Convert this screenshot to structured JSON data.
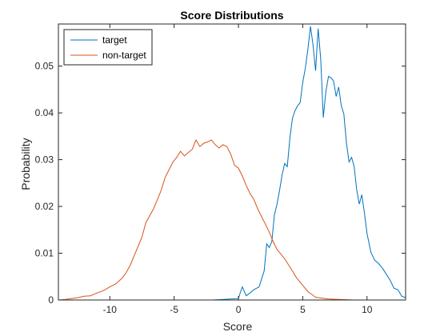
{
  "chart_data": {
    "type": "line",
    "title": "Score Distributions",
    "xlabel": "Score",
    "ylabel": "Probability",
    "xlim": [
      -14,
      13
    ],
    "ylim": [
      0,
      0.059
    ],
    "xticks": [
      -10,
      -5,
      0,
      5,
      10
    ],
    "yticks": [
      0,
      0.01,
      0.02,
      0.03,
      0.04,
      0.05
    ],
    "xtick_labels": [
      "-10",
      "-5",
      "0",
      "5",
      "10"
    ],
    "ytick_labels": [
      "0",
      "0.01",
      "0.02",
      "0.03",
      "0.04",
      "0.05"
    ],
    "grid": false,
    "legend_position": "top-left",
    "series": [
      {
        "name": "target",
        "color": "#0072BD",
        "x": [
          -14,
          -2,
          0,
          0.1,
          0.3,
          0.6,
          0.9,
          1.2,
          1.4,
          1.6,
          1.8,
          2.0,
          2.2,
          2.4,
          2.6,
          2.8,
          3.0,
          3.2,
          3.4,
          3.6,
          3.8,
          4.0,
          4.2,
          4.4,
          4.6,
          4.8,
          5.0,
          5.2,
          5.4,
          5.6,
          5.8,
          6.0,
          6.2,
          6.4,
          6.6,
          6.8,
          7.0,
          7.2,
          7.4,
          7.6,
          7.8,
          8.0,
          8.2,
          8.4,
          8.6,
          8.8,
          9.0,
          9.2,
          9.4,
          9.6,
          9.8,
          10.0,
          10.3,
          10.6,
          10.9,
          11.2,
          11.5,
          11.8,
          12.1,
          12.4,
          12.7,
          13
        ],
        "y": [
          0,
          0,
          0.0003,
          0.0012,
          0.0028,
          0.0009,
          0.0015,
          0.0022,
          0.0025,
          0.0028,
          0.0045,
          0.0062,
          0.012,
          0.0112,
          0.0125,
          0.0182,
          0.0205,
          0.0235,
          0.0268,
          0.0292,
          0.0285,
          0.0345,
          0.0388,
          0.0405,
          0.0415,
          0.0422,
          0.0465,
          0.0495,
          0.0535,
          0.0585,
          0.0545,
          0.049,
          0.058,
          0.0515,
          0.039,
          0.0445,
          0.0478,
          0.0475,
          0.0468,
          0.0435,
          0.0455,
          0.0415,
          0.0398,
          0.0335,
          0.0295,
          0.0305,
          0.0285,
          0.0235,
          0.0205,
          0.0225,
          0.0185,
          0.0142,
          0.0102,
          0.0085,
          0.0078,
          0.0068,
          0.0055,
          0.0042,
          0.0025,
          0.0022,
          0.0008,
          0.0005
        ]
      },
      {
        "name": "non-target",
        "color": "#D95319",
        "x": [
          -14,
          -13.5,
          -13,
          -12.5,
          -12,
          -11.5,
          -11,
          -10.5,
          -10,
          -9.5,
          -9,
          -8.7,
          -8.4,
          -8.1,
          -7.8,
          -7.5,
          -7.2,
          -6.9,
          -6.6,
          -6.3,
          -6.0,
          -5.7,
          -5.4,
          -5.1,
          -4.8,
          -4.5,
          -4.2,
          -3.9,
          -3.6,
          -3.3,
          -3.0,
          -2.7,
          -2.4,
          -2.1,
          -1.8,
          -1.5,
          -1.2,
          -0.9,
          -0.6,
          -0.3,
          0.0,
          0.3,
          0.6,
          0.9,
          1.2,
          1.5,
          1.8,
          2.1,
          2.4,
          2.7,
          3.0,
          3.3,
          3.6,
          3.9,
          4.2,
          4.5,
          4.8,
          5.1,
          5.4,
          5.7,
          6.0,
          6.5,
          7,
          8,
          9,
          10,
          11,
          12,
          13
        ],
        "y": [
          0.0,
          0.0001,
          0.0003,
          0.0005,
          0.0008,
          0.0009,
          0.0015,
          0.002,
          0.0028,
          0.0035,
          0.0048,
          0.006,
          0.0075,
          0.0095,
          0.0115,
          0.0135,
          0.0165,
          0.018,
          0.0195,
          0.0215,
          0.0235,
          0.0262,
          0.0278,
          0.0295,
          0.0305,
          0.0318,
          0.0308,
          0.0315,
          0.0322,
          0.0342,
          0.0328,
          0.0335,
          0.0338,
          0.0342,
          0.0332,
          0.0325,
          0.0332,
          0.0328,
          0.0312,
          0.0288,
          0.0282,
          0.0265,
          0.0245,
          0.0228,
          0.0215,
          0.0195,
          0.0178,
          0.0162,
          0.0145,
          0.0125,
          0.0108,
          0.0098,
          0.0088,
          0.0075,
          0.0062,
          0.0048,
          0.0038,
          0.0028,
          0.0018,
          0.0012,
          0.0006,
          0.0004,
          0.0002,
          0.0001,
          0,
          0,
          0,
          0,
          0
        ]
      }
    ]
  }
}
